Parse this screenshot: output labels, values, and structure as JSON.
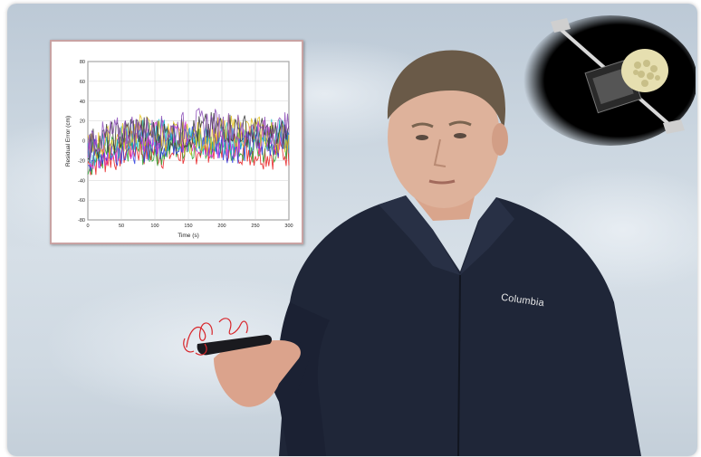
{
  "scene": {
    "description_free": true
  },
  "inset_chart": {
    "chart_data": {
      "type": "line",
      "xlabel": "Time (s)",
      "ylabel": "Residual Error (cm)",
      "xlim": [
        0,
        300
      ],
      "ylim": [
        -80,
        80
      ],
      "x_ticks": [
        "0",
        "50",
        "100",
        "150",
        "200",
        "250",
        "300"
      ],
      "y_ticks": [
        "80",
        "60",
        "40",
        "20",
        "0",
        "-20",
        "-40",
        "-60",
        "-80"
      ],
      "grid": true,
      "series_colors": [
        "#e8191b",
        "#23a52a",
        "#2a3ae0",
        "#d62cd6",
        "#13b8c6",
        "#e3c21a",
        "#333333",
        "#8a4ab6"
      ]
    }
  },
  "jacket_brand": {
    "text": "Columbia"
  },
  "colors": {
    "sky": "#cbd6e0",
    "jacket": "#1f2638",
    "trace": "#d8262b"
  }
}
